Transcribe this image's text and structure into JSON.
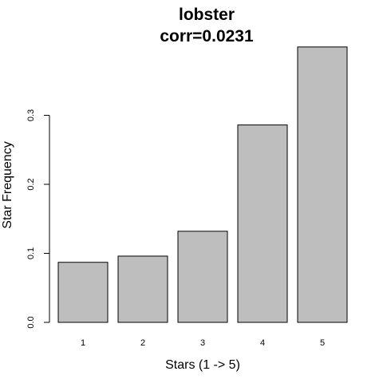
{
  "chart_data": {
    "type": "bar",
    "title": "lobster",
    "subtitle": "corr=0.0231",
    "xlabel": "Stars (1 -> 5)",
    "ylabel": "Star Frequency",
    "categories": [
      "1",
      "2",
      "3",
      "4",
      "5"
    ],
    "values": [
      0.087,
      0.096,
      0.132,
      0.286,
      0.399
    ],
    "yticks": [
      0.0,
      0.1,
      0.2,
      0.3
    ],
    "ytick_labels": [
      "0.0",
      "0.1",
      "0.2",
      "0.3"
    ],
    "ylim": [
      0,
      0.41
    ],
    "grid": false,
    "bar_color": "#bebebe",
    "bar_edge_color": "#000000"
  }
}
